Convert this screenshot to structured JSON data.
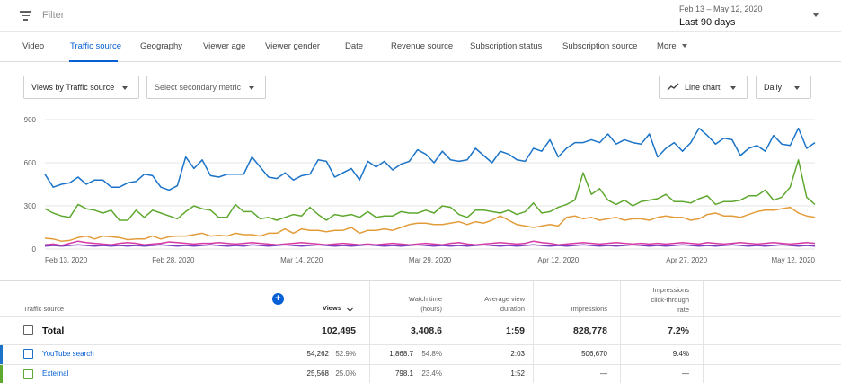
{
  "toolbar": {
    "filter_placeholder": "Filter",
    "date_range_sub": "Feb 13 – May 12, 2020",
    "date_range_main": "Last 90 days"
  },
  "tabs": [
    {
      "label": "Video",
      "active": false
    },
    {
      "label": "Traffic source",
      "active": true
    },
    {
      "label": "Geography",
      "active": false
    },
    {
      "label": "Viewer age",
      "active": false
    },
    {
      "label": "Viewer gender",
      "active": false
    },
    {
      "label": "Date",
      "active": false
    },
    {
      "label": "Revenue source",
      "active": false
    },
    {
      "label": "Subscription status",
      "active": false
    },
    {
      "label": "Subscription source",
      "active": false
    },
    {
      "label": "More",
      "active": false
    }
  ],
  "controls": {
    "primary_metric": "Views by Traffic source",
    "secondary_metric": "Select secondary metric",
    "chart_type": "Line chart",
    "granularity": "Daily"
  },
  "chart_data": {
    "type": "line",
    "y_ticks": [
      "900",
      "600",
      "300",
      "0"
    ],
    "ylim": [
      0,
      900
    ],
    "x_ticks": [
      "Feb 13, 2020",
      "Feb 28, 2020",
      "Mar 14, 2020",
      "Mar 29, 2020",
      "Apr 12, 2020",
      "Apr 27, 2020",
      "May 12, 2020"
    ],
    "grid": true,
    "series": [
      {
        "color": "#1a73c8",
        "values": [
          520,
          430,
          450,
          460,
          500,
          450,
          480,
          480,
          430,
          430,
          460,
          470,
          520,
          510,
          430,
          410,
          440,
          640,
          560,
          620,
          510,
          500,
          520,
          520,
          520,
          640,
          570,
          500,
          490,
          530,
          480,
          510,
          520,
          620,
          610,
          500,
          530,
          560,
          480,
          610,
          570,
          610,
          550,
          590,
          610,
          690,
          660,
          600,
          680,
          620,
          610,
          620,
          700,
          650,
          600,
          680,
          660,
          620,
          610,
          700,
          680,
          760,
          640,
          700,
          740,
          740,
          760,
          740,
          800,
          730,
          760,
          740,
          730,
          800,
          640,
          700,
          740,
          680,
          740,
          840,
          790,
          730,
          770,
          760,
          650,
          700,
          720,
          680,
          790,
          730,
          720,
          840,
          700,
          740
        ]
      },
      {
        "color": "#5fa82f",
        "values": [
          280,
          250,
          230,
          220,
          310,
          280,
          270,
          250,
          270,
          200,
          200,
          270,
          220,
          270,
          250,
          230,
          210,
          260,
          300,
          280,
          270,
          220,
          220,
          310,
          260,
          260,
          210,
          220,
          200,
          220,
          240,
          230,
          290,
          240,
          200,
          240,
          230,
          240,
          220,
          260,
          220,
          230,
          230,
          260,
          250,
          250,
          270,
          250,
          300,
          290,
          240,
          220,
          270,
          270,
          260,
          250,
          270,
          240,
          260,
          320,
          250,
          260,
          290,
          310,
          340,
          530,
          380,
          420,
          340,
          310,
          340,
          300,
          330,
          340,
          350,
          380,
          330,
          330,
          320,
          350,
          370,
          310,
          330,
          330,
          340,
          370,
          370,
          410,
          340,
          360,
          430,
          620,
          360,
          310
        ]
      },
      {
        "color": "#e39c3a",
        "values": [
          75,
          70,
          55,
          60,
          80,
          90,
          70,
          90,
          85,
          80,
          65,
          70,
          70,
          90,
          70,
          85,
          90,
          90,
          100,
          110,
          90,
          95,
          90,
          110,
          100,
          100,
          90,
          110,
          110,
          140,
          110,
          140,
          130,
          130,
          120,
          130,
          130,
          150,
          110,
          130,
          130,
          140,
          130,
          150,
          170,
          180,
          180,
          170,
          170,
          180,
          190,
          170,
          190,
          180,
          200,
          230,
          200,
          170,
          160,
          150,
          160,
          170,
          160,
          220,
          230,
          210,
          220,
          200,
          210,
          220,
          200,
          210,
          210,
          200,
          220,
          230,
          220,
          220,
          200,
          210,
          240,
          250,
          230,
          230,
          220,
          240,
          260,
          270,
          270,
          280,
          290,
          250,
          230,
          220
        ]
      },
      {
        "color": "#d63ba5",
        "values": [
          30,
          35,
          25,
          40,
          55,
          45,
          40,
          35,
          30,
          40,
          45,
          40,
          30,
          35,
          40,
          50,
          45,
          40,
          35,
          40,
          40,
          45,
          40,
          35,
          40,
          45,
          40,
          35,
          30,
          35,
          40,
          45,
          40,
          35,
          30,
          35,
          40,
          35,
          30,
          35,
          30,
          35,
          40,
          35,
          30,
          35,
          40,
          35,
          30,
          40,
          45,
          35,
          30,
          35,
          40,
          45,
          40,
          35,
          40,
          55,
          45,
          40,
          30,
          35,
          40,
          45,
          40,
          35,
          40,
          45,
          40,
          35,
          40,
          35,
          40,
          35,
          40,
          45,
          40,
          35,
          45,
          40,
          35,
          40,
          45,
          40,
          35,
          40,
          45,
          40,
          35,
          40,
          45,
          40
        ]
      },
      {
        "color": "#7b3fbf",
        "values": [
          20,
          25,
          20,
          25,
          30,
          25,
          20,
          25,
          20,
          25,
          20,
          25,
          20,
          25,
          30,
          25,
          20,
          25,
          20,
          25,
          30,
          25,
          20,
          25,
          20,
          30,
          25,
          20,
          25,
          30,
          25,
          20,
          25,
          30,
          25,
          20,
          25,
          20,
          25,
          30,
          25,
          20,
          25,
          20,
          25,
          30,
          25,
          20,
          25,
          20,
          25,
          20,
          25,
          30,
          25,
          20,
          25,
          20,
          25,
          30,
          25,
          20,
          25,
          20,
          25,
          30,
          25,
          20,
          25,
          20,
          25,
          30,
          25,
          20,
          25,
          20,
          25,
          30,
          25,
          20,
          25,
          20,
          25,
          30,
          25,
          20,
          25,
          20,
          25,
          30,
          25,
          20,
          25,
          20
        ]
      }
    ]
  },
  "table": {
    "headers": {
      "traffic_source": "Traffic source",
      "views": "Views",
      "watch_time_1": "Watch time",
      "watch_time_2": "(hours)",
      "avd_1": "Average view",
      "avd_2": "duration",
      "impressions": "Impressions",
      "ctr_1": "Impressions",
      "ctr_2": "click-through",
      "ctr_3": "rate"
    },
    "total": {
      "label": "Total",
      "views": "102,495",
      "watch_time": "3,408.6",
      "avd": "1:59",
      "impressions": "828,778",
      "ctr": "7.2%"
    },
    "rows": [
      {
        "source": "YouTube search",
        "color": "#1a73c8",
        "views": "54,262",
        "views_pct": "52.9%",
        "watch_time": "1,868.7",
        "watch_pct": "54.8%",
        "avd": "2:03",
        "impressions": "506,670",
        "ctr": "9.4%"
      },
      {
        "source": "External",
        "color": "#5fa82f",
        "views": "25,568",
        "views_pct": "25.0%",
        "watch_time": "798.1",
        "watch_pct": "23.4%",
        "avd": "1:52",
        "impressions": "—",
        "ctr": "—"
      }
    ]
  }
}
